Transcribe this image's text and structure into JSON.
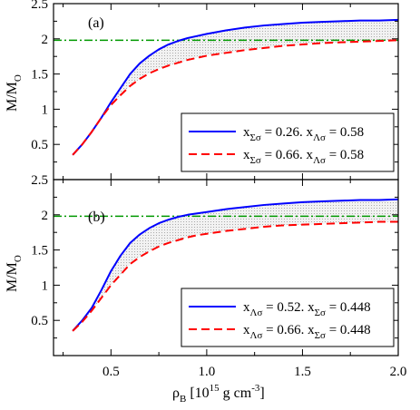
{
  "figure": {
    "xlabel_main": "ρ",
    "xlabel_sub": "B",
    "xlabel_rest": " [10",
    "xlabel_exp": "15",
    "xlabel_units": " g cm",
    "xlabel_units_exp": "-3",
    "xlabel_close": "]",
    "ylabel_main": "M/M",
    "ylabel_sub": "O"
  },
  "chart_data": [
    {
      "type": "line",
      "panel_label": "(a)",
      "xlim": [
        0.2,
        2.0
      ],
      "ylim": [
        0.0,
        2.5
      ],
      "xticks": [
        "0.5",
        "1.0",
        "1.5",
        "2.0"
      ],
      "yticks": [
        "0.5",
        "1",
        "1.5",
        "2",
        "2.5"
      ],
      "shaded_between_series": true,
      "legend_position": "bottom-right",
      "reference_line": {
        "y": 1.98,
        "color": "#009900",
        "style": "dash-dot"
      },
      "series": [
        {
          "name": "x_Σσ = 0.26, x_Λσ = 0.58",
          "color": "#0000ff",
          "style": "solid",
          "x": [
            0.3,
            0.35,
            0.4,
            0.45,
            0.5,
            0.55,
            0.6,
            0.65,
            0.7,
            0.75,
            0.8,
            0.85,
            0.9,
            0.95,
            1.0,
            1.1,
            1.2,
            1.3,
            1.4,
            1.5,
            1.6,
            1.7,
            1.8,
            1.9,
            2.0
          ],
          "y": [
            0.35,
            0.5,
            0.68,
            0.88,
            1.1,
            1.3,
            1.5,
            1.65,
            1.76,
            1.85,
            1.92,
            1.97,
            2.01,
            2.04,
            2.07,
            2.12,
            2.16,
            2.19,
            2.21,
            2.23,
            2.24,
            2.25,
            2.26,
            2.26,
            2.27
          ]
        },
        {
          "name": "x_Σσ = 0.66, x_Λσ = 0.58",
          "color": "#ff0000",
          "style": "dashed",
          "x": [
            0.3,
            0.35,
            0.4,
            0.45,
            0.5,
            0.55,
            0.6,
            0.65,
            0.7,
            0.75,
            0.8,
            0.85,
            0.9,
            0.95,
            1.0,
            1.1,
            1.2,
            1.3,
            1.4,
            1.5,
            1.6,
            1.7,
            1.8,
            1.9,
            2.0
          ],
          "y": [
            0.35,
            0.5,
            0.68,
            0.88,
            1.06,
            1.2,
            1.33,
            1.43,
            1.51,
            1.57,
            1.62,
            1.66,
            1.7,
            1.73,
            1.76,
            1.8,
            1.84,
            1.87,
            1.9,
            1.92,
            1.94,
            1.95,
            1.96,
            1.97,
            1.98
          ]
        }
      ]
    },
    {
      "type": "line",
      "panel_label": "(b)",
      "xlim": [
        0.2,
        2.0
      ],
      "ylim": [
        0.0,
        2.5
      ],
      "xticks": [
        "0.5",
        "1.0",
        "1.5",
        "2.0"
      ],
      "yticks": [
        "0.5",
        "1",
        "1.5",
        "2",
        "2.5"
      ],
      "shaded_between_series": true,
      "legend_position": "bottom-right",
      "reference_line": {
        "y": 1.98,
        "color": "#009900",
        "style": "dash-dot"
      },
      "series": [
        {
          "name": "x_Λσ = 0.52, x_Σσ = 0.448",
          "color": "#0000ff",
          "style": "solid",
          "x": [
            0.3,
            0.35,
            0.4,
            0.45,
            0.5,
            0.55,
            0.6,
            0.65,
            0.7,
            0.75,
            0.8,
            0.85,
            0.9,
            0.95,
            1.0,
            1.1,
            1.2,
            1.3,
            1.4,
            1.5,
            1.6,
            1.7,
            1.8,
            1.9,
            2.0
          ],
          "y": [
            0.35,
            0.5,
            0.68,
            0.93,
            1.2,
            1.42,
            1.6,
            1.72,
            1.81,
            1.88,
            1.93,
            1.97,
            2.0,
            2.02,
            2.04,
            2.08,
            2.11,
            2.14,
            2.16,
            2.18,
            2.19,
            2.2,
            2.21,
            2.21,
            2.22
          ]
        },
        {
          "name": "x_Λσ = 0.66, x_Σσ = 0.448",
          "color": "#ff0000",
          "style": "dashed",
          "x": [
            0.3,
            0.35,
            0.4,
            0.45,
            0.5,
            0.55,
            0.6,
            0.65,
            0.7,
            0.75,
            0.8,
            0.85,
            0.9,
            0.95,
            1.0,
            1.1,
            1.2,
            1.3,
            1.4,
            1.5,
            1.6,
            1.7,
            1.8,
            1.9,
            2.0
          ],
          "y": [
            0.35,
            0.48,
            0.64,
            0.82,
            1.0,
            1.15,
            1.3,
            1.4,
            1.48,
            1.55,
            1.6,
            1.64,
            1.68,
            1.71,
            1.73,
            1.77,
            1.8,
            1.83,
            1.85,
            1.86,
            1.87,
            1.88,
            1.89,
            1.9,
            1.9
          ]
        }
      ]
    }
  ]
}
